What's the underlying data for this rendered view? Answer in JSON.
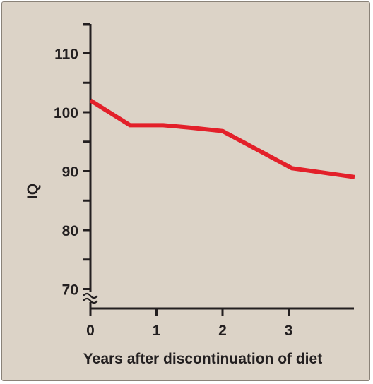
{
  "chart_data": {
    "type": "line",
    "xlabel": "Years after discontinuation of diet",
    "ylabel": "IQ",
    "xlim": [
      0,
      4
    ],
    "ylim": [
      67,
      115
    ],
    "x_ticks": [
      0,
      1,
      2,
      3
    ],
    "y_ticks": [
      70,
      80,
      90,
      100,
      110
    ],
    "x_tick_labels": [
      "0",
      "1",
      "2",
      "3"
    ],
    "y_tick_labels": [
      "70",
      "80",
      "90",
      "100",
      "110"
    ],
    "axis_break": "y-axis, between 67 and 70",
    "grid": false,
    "series": [
      {
        "x": [
          0,
          0.6,
          1.1,
          1.5,
          2.0,
          3.05,
          4.0
        ],
        "y": [
          102,
          97.8,
          97.8,
          97.4,
          96.8,
          90.5,
          89
        ],
        "color": "#e3202a"
      }
    ]
  },
  "colors": {
    "background": "#dcd3c7",
    "axis": "#231f20",
    "line": "#e3202a"
  }
}
